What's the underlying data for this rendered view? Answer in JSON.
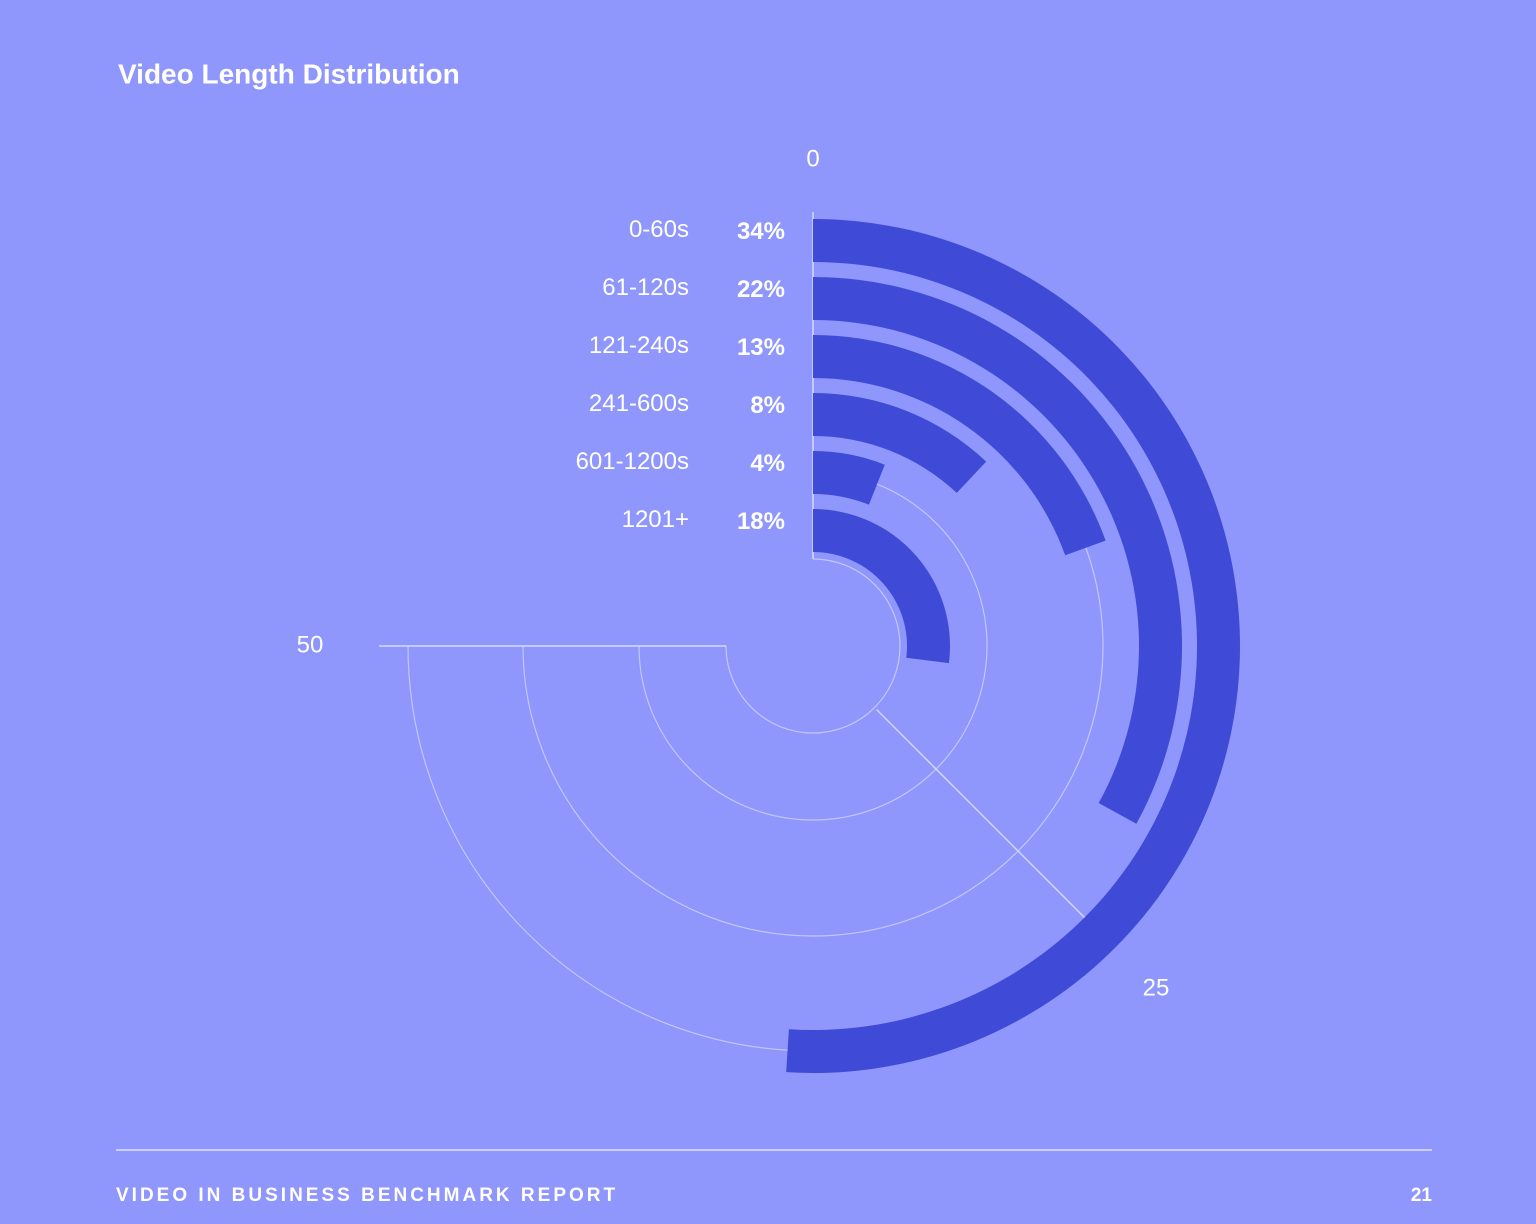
{
  "chart_data": {
    "type": "radial_bar",
    "title": "Video Length Distribution",
    "categories": [
      "0-60s",
      "61-120s",
      "121-240s",
      "241-600s",
      "601-1200s",
      "1201+"
    ],
    "values": [
      34,
      22,
      13,
      8,
      4,
      18
    ],
    "value_labels": [
      "34%",
      "22%",
      "13%",
      "8%",
      "4%",
      "18%"
    ],
    "color": "#3f4bd6",
    "thetalim": [
      0,
      50
    ],
    "thetaticks": [
      0,
      25,
      50
    ],
    "grid": true
  },
  "footer": {
    "report": "VIDEO IN BUSINESS BENCHMARK REPORT",
    "page": "21"
  }
}
